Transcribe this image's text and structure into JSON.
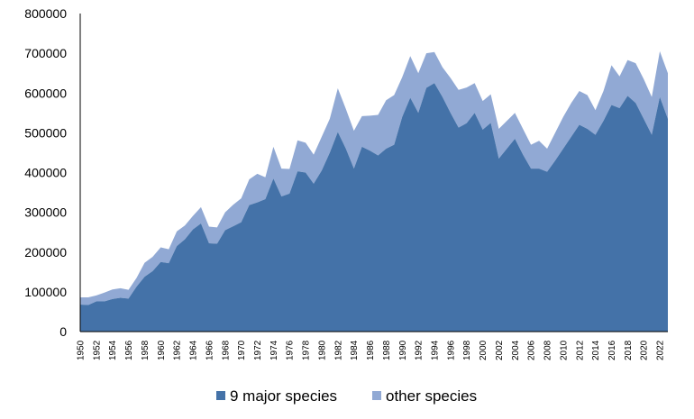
{
  "chart_data": {
    "type": "area",
    "stacked": true,
    "title": "",
    "xlabel": "",
    "ylabel": "",
    "ylim": [
      0,
      800000
    ],
    "yticks": [
      "0",
      "100000",
      "200000",
      "300000",
      "400000",
      "500000",
      "600000",
      "700000",
      "800000"
    ],
    "xticks": [
      "1950",
      "1952",
      "1954",
      "1956",
      "1958",
      "1960",
      "1962",
      "1964",
      "1966",
      "1968",
      "1970",
      "1972",
      "1974",
      "1976",
      "1978",
      "1980",
      "1982",
      "1984",
      "1986",
      "1988",
      "1990",
      "1992",
      "1994",
      "1996",
      "1998",
      "2000",
      "2002",
      "2004",
      "2006",
      "2008",
      "2010",
      "2012",
      "2014",
      "2016",
      "2018",
      "2020",
      "2022"
    ],
    "grid": false,
    "legend_position": "bottom",
    "x": [
      1950,
      1951,
      1952,
      1953,
      1954,
      1955,
      1956,
      1957,
      1958,
      1959,
      1960,
      1961,
      1962,
      1963,
      1964,
      1965,
      1966,
      1967,
      1968,
      1969,
      1970,
      1971,
      1972,
      1973,
      1974,
      1975,
      1976,
      1977,
      1978,
      1979,
      1980,
      1981,
      1982,
      1983,
      1984,
      1985,
      1986,
      1987,
      1988,
      1989,
      1990,
      1991,
      1992,
      1993,
      1994,
      1995,
      1996,
      1997,
      1998,
      1999,
      2000,
      2001,
      2002,
      2003,
      2004,
      2005,
      2006,
      2007,
      2008,
      2009,
      2010,
      2011,
      2012,
      2013,
      2014,
      2015,
      2016,
      2017,
      2018,
      2019,
      2020,
      2021,
      2022,
      2023
    ],
    "series": [
      {
        "name": "9 major species",
        "color": "#4472a8",
        "values": [
          68000,
          67000,
          76000,
          76000,
          82000,
          85000,
          83000,
          113000,
          138000,
          152000,
          175000,
          172000,
          215000,
          232000,
          257000,
          272000,
          222000,
          221000,
          255000,
          265000,
          275000,
          318000,
          325000,
          333000,
          385000,
          340000,
          347000,
          403000,
          400000,
          372000,
          405000,
          450000,
          502000,
          460000,
          410000,
          465000,
          455000,
          443000,
          460000,
          470000,
          540000,
          588000,
          550000,
          613000,
          625000,
          590000,
          550000,
          513000,
          524000,
          550000,
          508000,
          525000,
          435000,
          460000,
          485000,
          445000,
          410000,
          410000,
          402000,
          430000,
          460000,
          490000,
          520000,
          510000,
          495000,
          530000,
          570000,
          562000,
          593000,
          575000,
          535000,
          495000,
          590000,
          535000
        ]
      },
      {
        "name": "other species",
        "color": "#91a9d4",
        "values": [
          18000,
          19000,
          15000,
          22000,
          24000,
          24000,
          22000,
          22000,
          35000,
          36000,
          37000,
          35000,
          37000,
          35000,
          34000,
          41000,
          42000,
          41000,
          45000,
          54000,
          60000,
          65000,
          72000,
          55000,
          80000,
          70000,
          62000,
          78000,
          75000,
          73000,
          85000,
          85000,
          110000,
          100000,
          95000,
          77000,
          88000,
          102000,
          122000,
          125000,
          100000,
          105000,
          100000,
          87000,
          78000,
          75000,
          88000,
          95000,
          90000,
          75000,
          72000,
          72000,
          75000,
          70000,
          65000,
          65000,
          60000,
          70000,
          58000,
          70000,
          80000,
          85000,
          85000,
          85000,
          62000,
          75000,
          100000,
          80000,
          90000,
          100000,
          100000,
          95000,
          115000,
          115000
        ]
      }
    ]
  }
}
